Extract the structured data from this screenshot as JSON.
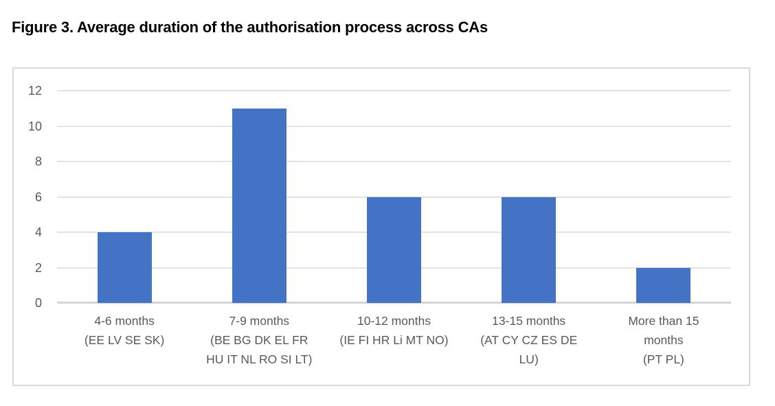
{
  "figure": {
    "title": "Figure 3. Average duration of the authorisation process across CAs"
  },
  "chart_data": {
    "type": "bar",
    "title": "Figure 3. Average duration of the authorisation process across CAs",
    "categories": [
      "4-6 months (EE LV SE SK)",
      "7-9 months (BE BG DK EL FR HU IT NL RO SI LT)",
      "10-12 months (IE FI HR Li MT NO)",
      "13-15 months (AT CY CZ ES DE LU)",
      "More than 15 months (PT PL)"
    ],
    "category_label_lines": [
      [
        "4-6 months",
        "(EE LV SE SK)"
      ],
      [
        "7-9 months",
        "(BE BG DK EL FR",
        "HU IT NL RO SI LT)"
      ],
      [
        "10-12 months",
        "(IE FI HR Li MT NO)"
      ],
      [
        "13-15 months",
        "(AT CY CZ ES DE",
        "LU)"
      ],
      [
        "More than 15",
        "months",
        "(PT PL)"
      ]
    ],
    "values": [
      4,
      11,
      6,
      6,
      2
    ],
    "xlabel": "",
    "ylabel": "",
    "ylim": [
      0,
      12
    ],
    "yticks": [
      0,
      2,
      4,
      6,
      8,
      10,
      12
    ],
    "grid": true,
    "legend": false,
    "bar_color": "#4472C4",
    "gridline_color": "#E2E2E2",
    "axis_line_color": "#D4D4D4",
    "tick_label_color": "#595959",
    "frame_border_color": "#D9D9D9"
  }
}
